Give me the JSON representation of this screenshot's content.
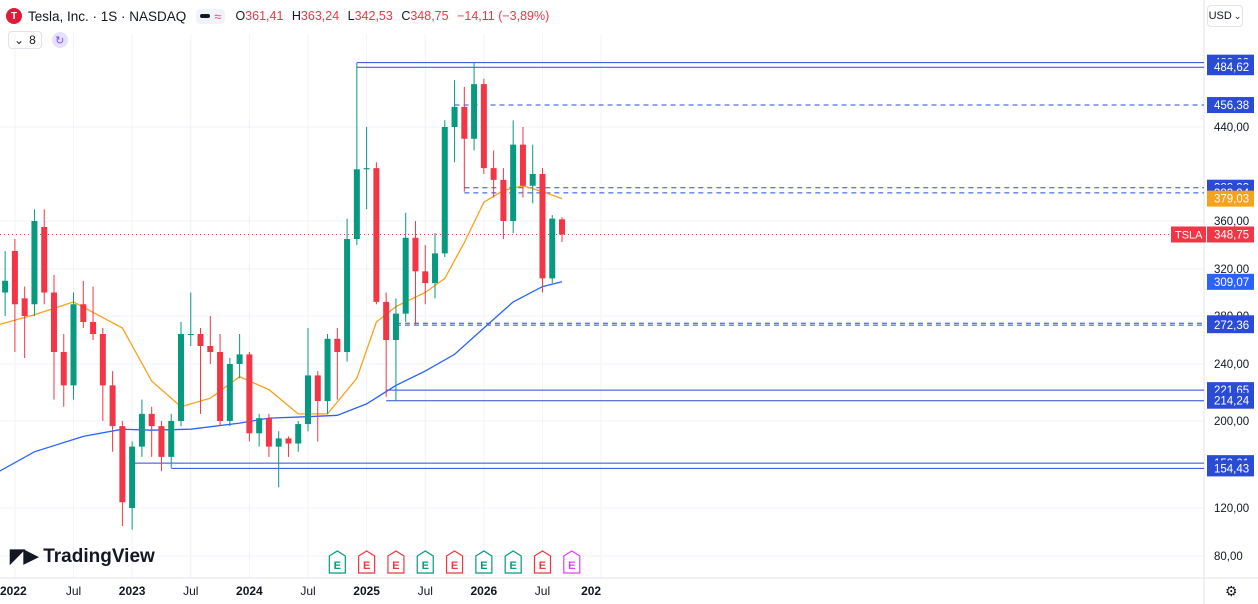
{
  "header": {
    "logo_letter": "T",
    "symbol": "Tesla, Inc. · 1S · NASDAQ",
    "ohlc": [
      {
        "k": "O",
        "v": "361,41"
      },
      {
        "k": "H",
        "v": "363,24"
      },
      {
        "k": "L",
        "v": "342,53"
      },
      {
        "k": "C",
        "v": "348,75"
      },
      {
        "k": "",
        "v": "−14,11 (−3,89%)"
      }
    ],
    "indicator_count": "8",
    "currency": "USD"
  },
  "brand": "TradingView",
  "colors": {
    "up": "#089981",
    "down": "#f23645",
    "ma_fast": "#f7a21b",
    "ma_slow": "#2962ff",
    "level": "#2a4bd6",
    "price_line": "#f23645",
    "earnings_up": "#089981",
    "earnings_down": "#f23645",
    "earnings_future": "#e040fb"
  },
  "chart_data": {
    "type": "candlestick",
    "symbol_tag": "TSLA",
    "y_axis_ticks": [
      "80,00",
      "120,00",
      "200,00",
      "240,00",
      "280,00",
      "320,00",
      "360,00",
      "440,00"
    ],
    "x_axis_ticks": [
      "2022",
      "Jul",
      "2023",
      "Jul",
      "2024",
      "Jul",
      "2025",
      "Jul",
      "2026",
      "Jul",
      "202"
    ],
    "price_labels": [
      {
        "value": 488.03,
        "text": "488,03",
        "kind": "level"
      },
      {
        "value": 484.62,
        "text": "484,62",
        "kind": "level"
      },
      {
        "value": 456.38,
        "text": "456,38",
        "kind": "level"
      },
      {
        "value": 388.33,
        "text": "388,33",
        "kind": "level"
      },
      {
        "value": 383.94,
        "text": "383,94",
        "kind": "level"
      },
      {
        "value": 379.03,
        "text": "379,03",
        "kind": "ma_fast"
      },
      {
        "value": 348.75,
        "text": "348,75",
        "kind": "last"
      },
      {
        "value": 309.07,
        "text": "309,07",
        "kind": "ma_slow"
      },
      {
        "value": 273.92,
        "text": "273,92",
        "kind": "level"
      },
      {
        "value": 272.36,
        "text": "272,36",
        "kind": "level"
      },
      {
        "value": 221.65,
        "text": "221,65",
        "kind": "level"
      },
      {
        "value": 214.24,
        "text": "214,24",
        "kind": "level"
      },
      {
        "value": 159.01,
        "text": "159,01",
        "kind": "level"
      },
      {
        "value": 154.43,
        "text": "154,43",
        "kind": "level"
      }
    ],
    "levels": [
      {
        "value": 488.03,
        "start": "2024-12",
        "style": "solid"
      },
      {
        "value": 484.62,
        "start": "2024-12",
        "style": "solid"
      },
      {
        "value": 456.38,
        "start": "2025-10",
        "style": "dashed"
      },
      {
        "value": 388.33,
        "start": "2025-11",
        "style": "dashed"
      },
      {
        "value": 383.94,
        "start": "2025-11",
        "style": "dashed"
      },
      {
        "value": 273.92,
        "start": "2025-04",
        "style": "dashed"
      },
      {
        "value": 272.36,
        "start": "2025-04",
        "style": "dashed"
      },
      {
        "value": 221.65,
        "start": "2025-03",
        "style": "solid"
      },
      {
        "value": 214.24,
        "start": "2025-03",
        "style": "solid"
      },
      {
        "value": 159.01,
        "start": "2023-01",
        "style": "solid"
      },
      {
        "value": 154.43,
        "start": "2023-05",
        "style": "solid"
      }
    ],
    "earnings_markers": [
      {
        "date": "2024-10",
        "label": "E",
        "kind": "up"
      },
      {
        "date": "2025-01",
        "label": "E",
        "kind": "down"
      },
      {
        "date": "2025-04",
        "label": "E",
        "kind": "down"
      },
      {
        "date": "2025-07",
        "label": "E",
        "kind": "up"
      },
      {
        "date": "2025-10",
        "label": "E",
        "kind": "down"
      },
      {
        "date": "2026-01",
        "label": "E",
        "kind": "up"
      },
      {
        "date": "2026-04",
        "label": "E",
        "kind": "up"
      },
      {
        "date": "2026-07",
        "label": "E",
        "kind": "down"
      },
      {
        "date": "2026-10",
        "label": "E",
        "kind": "future"
      }
    ],
    "series": [
      {
        "name": "TSLA",
        "type": "candlestick",
        "points": [
          {
            "d": "2021-12",
            "o": 300,
            "h": 335,
            "l": 280,
            "c": 310
          },
          {
            "d": "2022-01",
            "o": 335,
            "h": 345,
            "l": 250,
            "c": 290
          },
          {
            "d": "2022-02",
            "o": 295,
            "h": 305,
            "l": 245,
            "c": 280
          },
          {
            "d": "2022-03",
            "o": 290,
            "h": 370,
            "l": 280,
            "c": 360
          },
          {
            "d": "2022-04",
            "o": 355,
            "h": 370,
            "l": 290,
            "c": 300
          },
          {
            "d": "2022-05",
            "o": 300,
            "h": 315,
            "l": 215,
            "c": 250
          },
          {
            "d": "2022-06",
            "o": 250,
            "h": 265,
            "l": 210,
            "c": 225
          },
          {
            "d": "2022-07",
            "o": 225,
            "h": 300,
            "l": 215,
            "c": 290
          },
          {
            "d": "2022-08",
            "o": 290,
            "h": 310,
            "l": 270,
            "c": 275
          },
          {
            "d": "2022-09",
            "o": 275,
            "h": 305,
            "l": 260,
            "c": 265
          },
          {
            "d": "2022-10",
            "o": 265,
            "h": 270,
            "l": 200,
            "c": 225
          },
          {
            "d": "2022-11",
            "o": 225,
            "h": 235,
            "l": 170,
            "c": 195
          },
          {
            "d": "2022-12",
            "o": 195,
            "h": 200,
            "l": 105,
            "c": 125
          },
          {
            "d": "2023-01",
            "o": 120,
            "h": 180,
            "l": 102,
            "c": 175
          },
          {
            "d": "2023-02",
            "o": 175,
            "h": 215,
            "l": 165,
            "c": 205
          },
          {
            "d": "2023-03",
            "o": 205,
            "h": 210,
            "l": 165,
            "c": 195
          },
          {
            "d": "2023-04",
            "o": 195,
            "h": 200,
            "l": 152,
            "c": 165
          },
          {
            "d": "2023-05",
            "o": 165,
            "h": 205,
            "l": 155,
            "c": 200
          },
          {
            "d": "2023-06",
            "o": 200,
            "h": 275,
            "l": 195,
            "c": 265
          },
          {
            "d": "2023-07",
            "o": 265,
            "h": 300,
            "l": 255,
            "c": 265
          },
          {
            "d": "2023-08",
            "o": 265,
            "h": 270,
            "l": 205,
            "c": 255
          },
          {
            "d": "2023-09",
            "o": 255,
            "h": 280,
            "l": 240,
            "c": 250
          },
          {
            "d": "2023-10",
            "o": 250,
            "h": 265,
            "l": 195,
            "c": 200
          },
          {
            "d": "2023-11",
            "o": 200,
            "h": 245,
            "l": 195,
            "c": 240
          },
          {
            "d": "2023-12",
            "o": 240,
            "h": 265,
            "l": 230,
            "c": 248
          },
          {
            "d": "2024-01",
            "o": 248,
            "h": 250,
            "l": 180,
            "c": 188
          },
          {
            "d": "2024-02",
            "o": 188,
            "h": 205,
            "l": 175,
            "c": 202
          },
          {
            "d": "2024-03",
            "o": 202,
            "h": 205,
            "l": 165,
            "c": 175
          },
          {
            "d": "2024-04",
            "o": 175,
            "h": 190,
            "l": 138,
            "c": 183
          },
          {
            "d": "2024-05",
            "o": 183,
            "h": 185,
            "l": 165,
            "c": 178
          },
          {
            "d": "2024-06",
            "o": 178,
            "h": 200,
            "l": 170,
            "c": 197
          },
          {
            "d": "2024-07",
            "o": 197,
            "h": 270,
            "l": 190,
            "c": 232
          },
          {
            "d": "2024-08",
            "o": 232,
            "h": 235,
            "l": 180,
            "c": 214
          },
          {
            "d": "2024-09",
            "o": 214,
            "h": 265,
            "l": 205,
            "c": 261
          },
          {
            "d": "2024-10",
            "o": 261,
            "h": 270,
            "l": 215,
            "c": 250
          },
          {
            "d": "2024-11",
            "o": 250,
            "h": 362,
            "l": 242,
            "c": 345
          },
          {
            "d": "2024-12",
            "o": 345,
            "h": 488,
            "l": 340,
            "c": 404
          },
          {
            "d": "2025-01",
            "o": 404,
            "h": 440,
            "l": 370,
            "c": 405
          },
          {
            "d": "2025-02",
            "o": 405,
            "h": 410,
            "l": 290,
            "c": 292
          },
          {
            "d": "2025-03",
            "o": 292,
            "h": 300,
            "l": 217,
            "c": 260
          },
          {
            "d": "2025-04",
            "o": 260,
            "h": 295,
            "l": 214,
            "c": 282
          },
          {
            "d": "2025-05",
            "o": 282,
            "h": 367,
            "l": 275,
            "c": 346
          },
          {
            "d": "2025-06",
            "o": 346,
            "h": 360,
            "l": 273,
            "c": 318
          },
          {
            "d": "2025-07",
            "o": 318,
            "h": 340,
            "l": 290,
            "c": 308
          },
          {
            "d": "2025-08",
            "o": 308,
            "h": 350,
            "l": 295,
            "c": 333
          },
          {
            "d": "2025-09",
            "o": 333,
            "h": 445,
            "l": 330,
            "c": 440
          },
          {
            "d": "2025-10",
            "o": 440,
            "h": 475,
            "l": 410,
            "c": 455
          },
          {
            "d": "2025-11",
            "o": 455,
            "h": 470,
            "l": 385,
            "c": 430
          },
          {
            "d": "2025-12",
            "o": 430,
            "h": 488,
            "l": 420,
            "c": 472
          },
          {
            "d": "2026-01",
            "o": 472,
            "h": 476,
            "l": 400,
            "c": 405
          },
          {
            "d": "2026-02",
            "o": 405,
            "h": 420,
            "l": 380,
            "c": 395
          },
          {
            "d": "2026-03",
            "o": 395,
            "h": 405,
            "l": 345,
            "c": 360
          },
          {
            "d": "2026-04",
            "o": 360,
            "h": 445,
            "l": 350,
            "c": 425
          },
          {
            "d": "2026-05",
            "o": 425,
            "h": 440,
            "l": 380,
            "c": 390
          },
          {
            "d": "2026-06",
            "o": 390,
            "h": 425,
            "l": 375,
            "c": 400
          },
          {
            "d": "2026-07",
            "o": 400,
            "h": 405,
            "l": 300,
            "c": 312
          },
          {
            "d": "2026-08",
            "o": 312,
            "h": 365,
            "l": 308,
            "c": 362
          },
          {
            "d": "2026-09",
            "o": 361.41,
            "h": 363.24,
            "l": 342.53,
            "c": 348.75
          }
        ]
      },
      {
        "name": "MA fast",
        "type": "line",
        "points": [
          [
            "2021-11",
            272
          ],
          [
            "2022-03",
            281
          ],
          [
            "2022-07",
            292
          ],
          [
            "2022-12",
            270
          ],
          [
            "2023-03",
            228
          ],
          [
            "2023-06",
            210
          ],
          [
            "2023-09",
            216
          ],
          [
            "2023-12",
            231
          ],
          [
            "2024-03",
            222
          ],
          [
            "2024-06",
            205
          ],
          [
            "2024-09",
            205
          ],
          [
            "2024-12",
            230
          ],
          [
            "2025-02",
            275
          ],
          [
            "2025-04",
            288
          ],
          [
            "2025-07",
            300
          ],
          [
            "2025-09",
            312
          ],
          [
            "2025-11",
            342
          ],
          [
            "2026-01",
            376
          ],
          [
            "2026-03",
            386
          ],
          [
            "2026-05",
            390
          ],
          [
            "2026-07",
            385
          ],
          [
            "2026-09",
            379.03
          ]
        ]
      },
      {
        "name": "MA slow",
        "type": "line",
        "points": [
          [
            "2021-11",
            150
          ],
          [
            "2022-03",
            170
          ],
          [
            "2022-08",
            185
          ],
          [
            "2022-12",
            192
          ],
          [
            "2023-03",
            191
          ],
          [
            "2023-07",
            192
          ],
          [
            "2023-12",
            198
          ],
          [
            "2024-03",
            202
          ],
          [
            "2024-07",
            203
          ],
          [
            "2024-10",
            204
          ],
          [
            "2025-01",
            212
          ],
          [
            "2025-04",
            225
          ],
          [
            "2025-07",
            235
          ],
          [
            "2025-10",
            248
          ],
          [
            "2026-01",
            270
          ],
          [
            "2026-04",
            292
          ],
          [
            "2026-07",
            305
          ],
          [
            "2026-09",
            309.07
          ]
        ]
      }
    ]
  }
}
